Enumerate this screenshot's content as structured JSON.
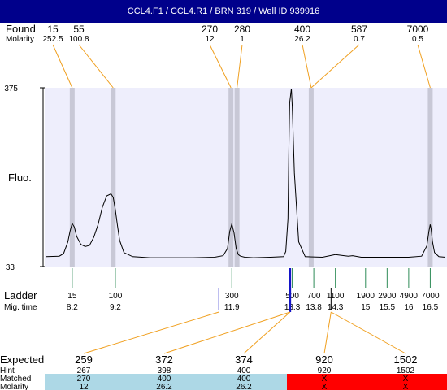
{
  "window": {
    "title": "CCL4.F1 / CCL4.R1 / BRN 319 / Well ID 939916"
  },
  "colors": {
    "plot_bg": "#eeeefc",
    "band": "#c8c8d6",
    "leader": "#f0a020",
    "ladder_tick": "#2e8b57",
    "ladder_marker": "#1414c8",
    "matched_bg": "#add8e6",
    "unmatched_bg": "#ff0000"
  },
  "labels": {
    "found": "Found",
    "molarity": "Molarity",
    "fluo": "Fluo.",
    "ladder": "Ladder",
    "mig_time": "Mig. time",
    "expected": "Expected",
    "hint": "Hint",
    "matched": "Matched",
    "molarity_row": "Molarity"
  },
  "chart_data": {
    "type": "line",
    "title": "",
    "xlabel": "Mig. time",
    "ylabel": "Fluo.",
    "xlim": [
      7.6,
      16.85
    ],
    "ylim": [
      33,
      375
    ],
    "yticks": [
      375,
      33
    ],
    "grid": false,
    "trace": {
      "x": [
        7.6,
        7.9,
        8.0,
        8.1,
        8.15,
        8.2,
        8.25,
        8.3,
        8.4,
        8.5,
        8.6,
        8.7,
        8.8,
        8.9,
        9.0,
        9.1,
        9.15,
        9.2,
        9.25,
        9.3,
        9.4,
        9.6,
        10.0,
        11.0,
        11.5,
        11.7,
        11.8,
        11.85,
        11.9,
        11.95,
        12.0,
        12.05,
        12.1,
        12.2,
        12.4,
        12.8,
        13.1,
        13.15,
        13.2,
        13.22,
        13.24,
        13.28,
        13.3,
        13.35,
        13.45,
        13.6,
        14.0,
        14.3,
        14.5,
        14.6,
        14.7,
        14.9,
        15.1,
        15.3,
        15.6,
        16.0,
        16.3,
        16.42,
        16.47,
        16.5,
        16.52,
        16.55,
        16.6,
        16.7,
        16.85
      ],
      "y": [
        46,
        47,
        52,
        75,
        96,
        111,
        104,
        86,
        70,
        66,
        68,
        84,
        109,
        143,
        165,
        169,
        162,
        138,
        106,
        78,
        54,
        46,
        44,
        44,
        45,
        48,
        62,
        95,
        110,
        93,
        62,
        50,
        47,
        45,
        44,
        45,
        46,
        56,
        120,
        245,
        347,
        375,
        340,
        210,
        75,
        46,
        45,
        50,
        48,
        47,
        48,
        45,
        45,
        45,
        45,
        45,
        47,
        67,
        96,
        109,
        100,
        76,
        54,
        46,
        45
      ]
    },
    "ladder": {
      "sizes": [
        "15",
        "100",
        "300",
        "500",
        "700",
        "1100",
        "1900",
        "2900",
        "4900",
        "7000"
      ],
      "mig_time": [
        8.2,
        9.2,
        11.9,
        13.3,
        13.8,
        14.3,
        15.0,
        15.5,
        16.0,
        16.5
      ]
    },
    "marker_lines": [
      11.6,
      13.25,
      14.2
    ],
    "peaks_found": [
      {
        "size": "15",
        "molarity": "252.5",
        "x": 8.2
      },
      {
        "size": "55",
        "molarity": "100.8",
        "x": 9.15
      },
      {
        "size": "270",
        "molarity": "12",
        "x": 11.88
      },
      {
        "size": "280",
        "molarity": "1",
        "x": 12.02
      },
      {
        "size": "400",
        "molarity": "26.2",
        "x": 13.74
      },
      {
        "size": "587",
        "molarity": "0.7",
        "x": 13.74
      },
      {
        "size": "7000",
        "molarity": "0.5",
        "x": 16.5
      }
    ],
    "bands": [
      8.2,
      9.15,
      11.88,
      12.02,
      13.74,
      16.5
    ],
    "expected": [
      {
        "expected": "259",
        "hint": "267",
        "matched": "270",
        "molarity": "12",
        "status": "matched",
        "link": 11.6
      },
      {
        "expected": "372",
        "hint": "398",
        "matched": "400",
        "molarity": "26.2",
        "status": "matched",
        "link": 13.25
      },
      {
        "expected": "374",
        "hint": "400",
        "matched": "400",
        "molarity": "26.2",
        "status": "matched",
        "link": 13.25
      },
      {
        "expected": "920",
        "hint": "920",
        "matched": "X",
        "molarity": "X",
        "status": "unmatched",
        "link": 14.2
      },
      {
        "expected": "1502",
        "hint": "1502",
        "matched": "X",
        "molarity": "X",
        "status": "unmatched",
        "link": 14.2
      }
    ]
  }
}
